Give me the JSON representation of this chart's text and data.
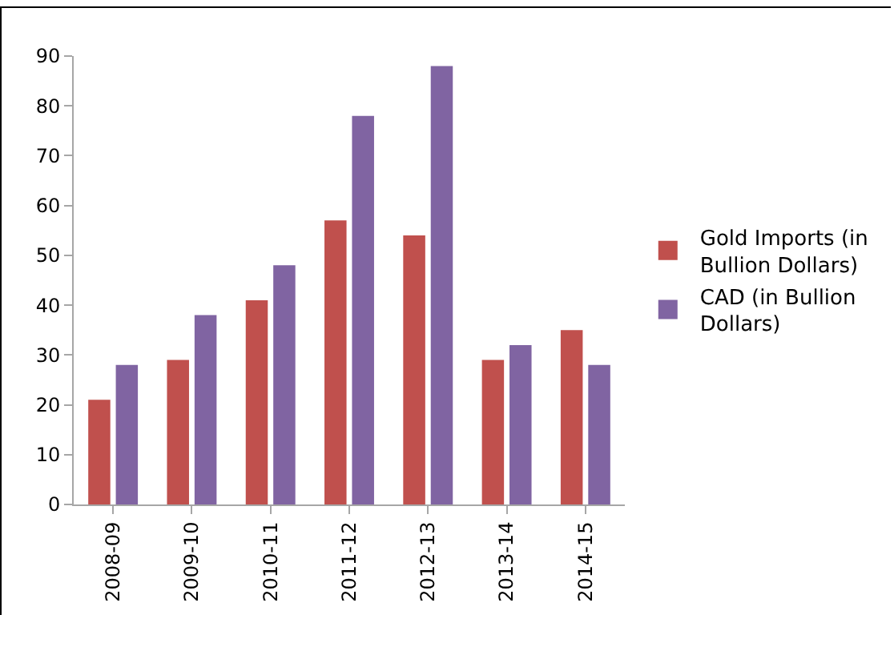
{
  "chart_data": {
    "type": "bar",
    "categories": [
      "2008-09",
      "2009-10",
      "2010-11",
      "2011-12",
      "2012-13",
      "2013-14",
      "2014-15"
    ],
    "series": [
      {
        "name": "Gold Imports (in Bullion Dollars)",
        "color": "#c0504d",
        "values": [
          21,
          29,
          41,
          57,
          54,
          29,
          35
        ]
      },
      {
        "name": "CAD (in Bullion Dollars)",
        "color": "#8064a2",
        "values": [
          28,
          38,
          48,
          78,
          88,
          32,
          28
        ]
      }
    ],
    "ylim": [
      0,
      90
    ],
    "yticks": [
      0,
      10,
      20,
      30,
      40,
      50,
      60,
      70,
      80,
      90
    ],
    "grid": false,
    "legend": "right"
  }
}
